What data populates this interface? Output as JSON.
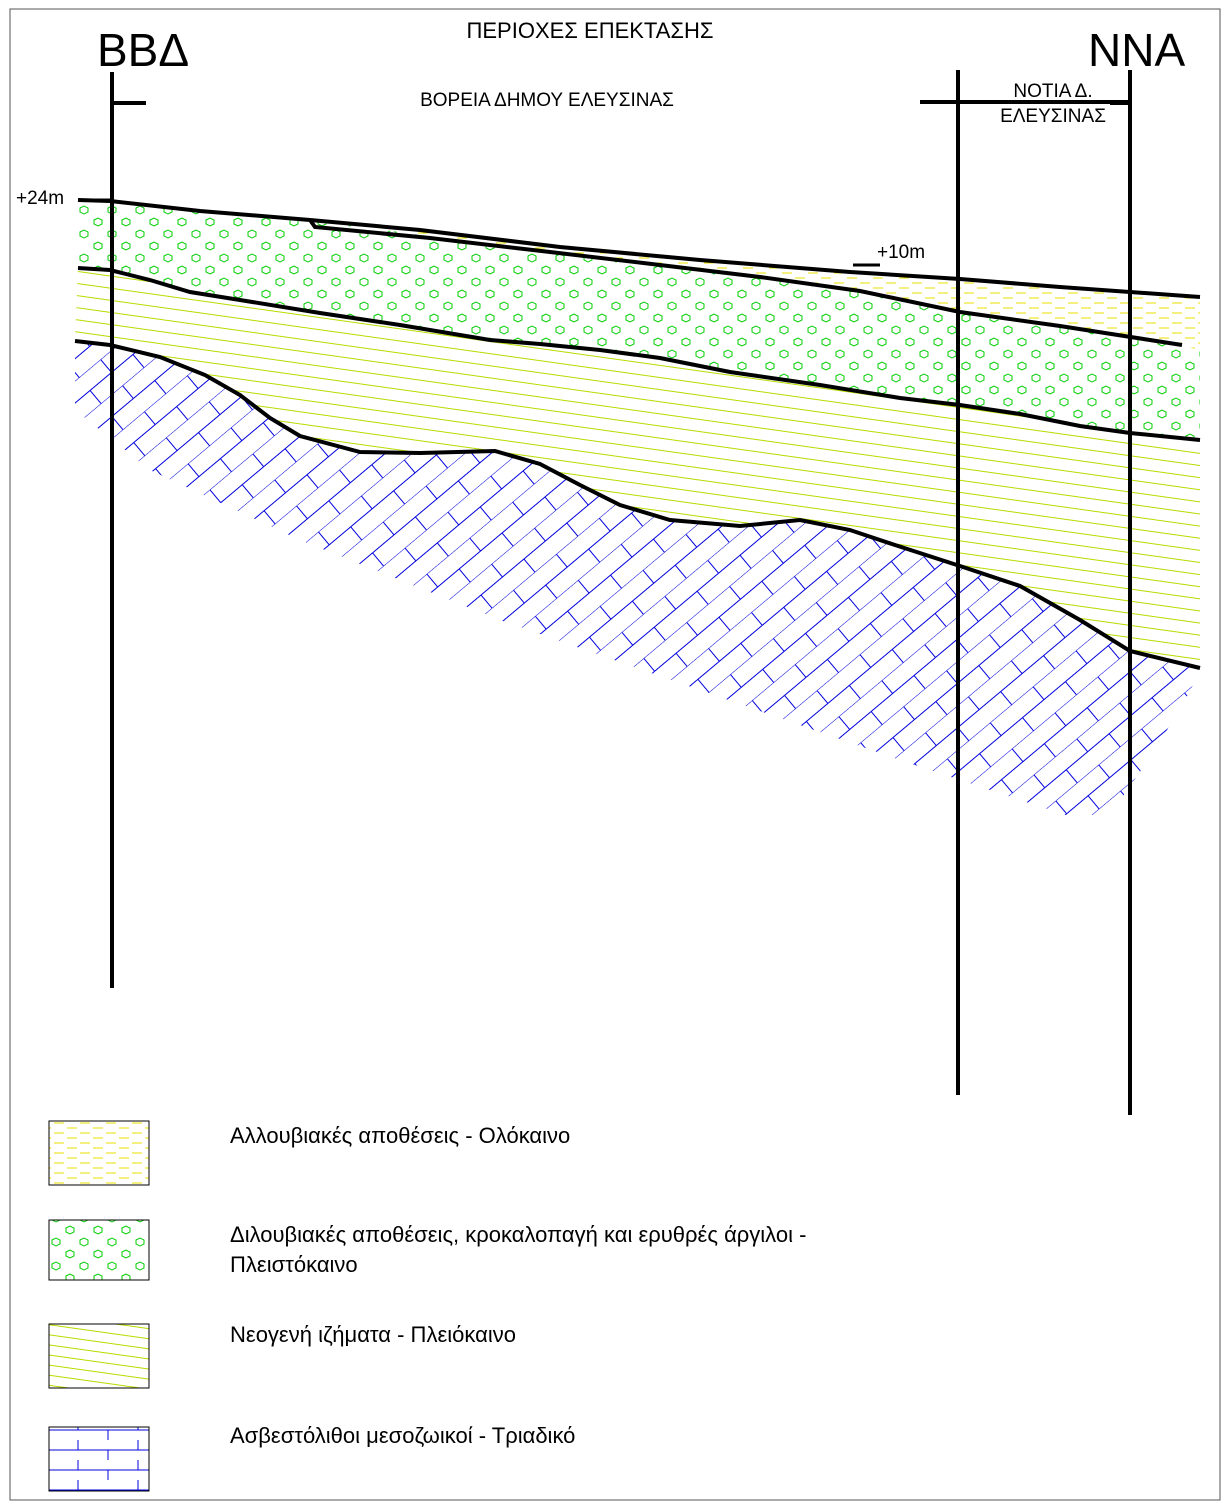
{
  "title": "ΠΕΡΙΟΧΕΣ ΕΠΕΚΤΑΣΗΣ",
  "left_end": "ΒΒΔ",
  "right_end": "ΝΝΑ",
  "north_label": "ΒΟΡΕΙΑ ΔΗΜΟΥ ΕΛΕΥΣΙΝΑΣ",
  "south_label": [
    "ΝΟΤΙΑ Δ.",
    "ΕΛΕΥΣΙΝΑΣ"
  ],
  "elevations": {
    "left": "+24m",
    "mid": "+10m"
  },
  "legend": [
    {
      "id": "alluvial",
      "lines": [
        "Αλλουβιακές αποθέσεις - Ολόκαινο"
      ],
      "color": "#e8e000"
    },
    {
      "id": "diluvial",
      "lines": [
        "Διλουβιακές αποθέσεις, κροκαλοπαγή και ερυθρές άργιλοι -",
        "Πλειστόκαινο"
      ],
      "color": "#00cc00"
    },
    {
      "id": "neogene",
      "lines": [
        "Νεογενή ιζήματα - Πλειόκαινο"
      ],
      "color": "#a8d400"
    },
    {
      "id": "limestone",
      "lines": [
        "Ασβεστόλιθοι μεσοζωικοί - Τριαδικό"
      ],
      "color": "#0000cc"
    }
  ]
}
